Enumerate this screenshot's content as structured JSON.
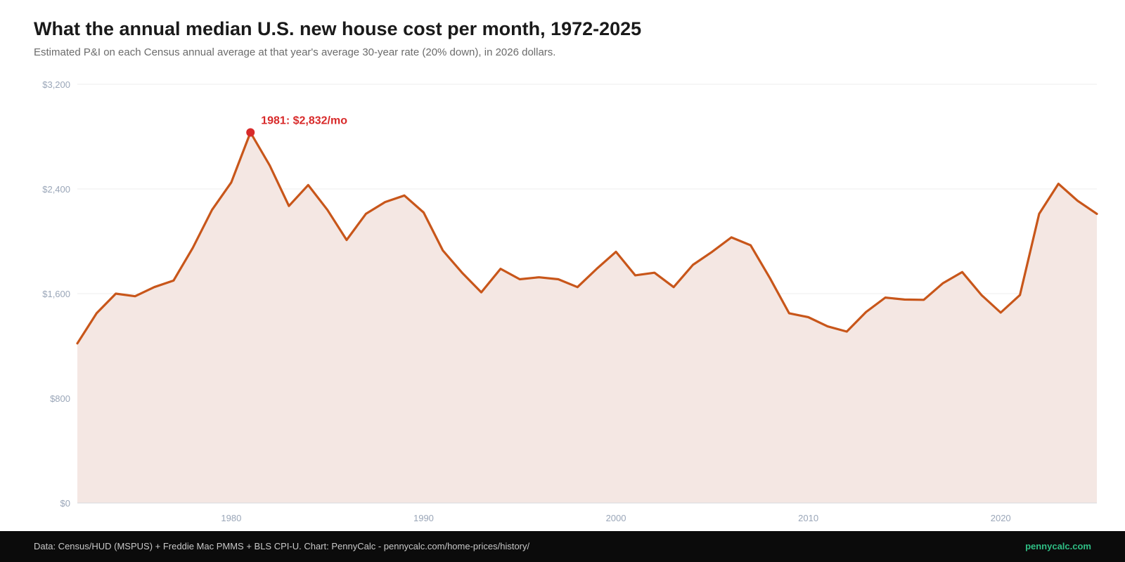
{
  "header": {
    "title": "What the annual median U.S. new house cost per month, 1972-2025",
    "subtitle": "Estimated P&I on each Census annual average at that year's average 30-year rate (20% down), in 2026 dollars."
  },
  "footer": {
    "source": "Data: Census/HUD (MSPUS) + Freddie Mac PMMS + BLS CPI-U. Chart: PennyCalc - pennycalc.com/home-prices/history/",
    "brand": "pennycalc.com"
  },
  "colors": {
    "line": "#c8561a",
    "area": "#f4e7e3",
    "peak": "#d82a2a",
    "grid": "#eeeeee",
    "brand": "#2fbf85"
  },
  "chart_data": {
    "type": "area",
    "title": "What the annual median U.S. new house cost per month, 1972-2025",
    "xlabel": "",
    "ylabel": "",
    "xlim": [
      1972,
      2025
    ],
    "ylim": [
      0,
      3200
    ],
    "x_ticks": [
      1980,
      1990,
      2000,
      2010,
      2020
    ],
    "y_ticks": [
      0,
      800,
      1600,
      2400,
      3200
    ],
    "y_tick_labels": [
      "$0",
      "$800",
      "$1,600",
      "$2,400",
      "$3,200"
    ],
    "grid": true,
    "legend": "none",
    "series": [
      {
        "x": [
          1972,
          1973,
          1974,
          1975,
          1976,
          1977,
          1978,
          1979,
          1980,
          1981,
          1982,
          1983,
          1984,
          1985,
          1986,
          1987,
          1988,
          1989,
          1990,
          1991,
          1992,
          1993,
          1994,
          1995,
          1996,
          1997,
          1998,
          1999,
          2000,
          2001,
          2002,
          2003,
          2004,
          2005,
          2006,
          2007,
          2008,
          2009,
          2010,
          2011,
          2012,
          2013,
          2014,
          2015,
          2016,
          2017,
          2018,
          2019,
          2020,
          2021,
          2022,
          2023,
          2024,
          2025
        ],
        "values": [
          1220,
          1450,
          1600,
          1580,
          1650,
          1700,
          1950,
          2240,
          2450,
          2832,
          2580,
          2270,
          2430,
          2240,
          2010,
          2210,
          2300,
          2350,
          2220,
          1930,
          1760,
          1610,
          1790,
          1710,
          1725,
          1710,
          1650,
          1790,
          1920,
          1740,
          1760,
          1650,
          1820,
          1920,
          2030,
          1970,
          1720,
          1450,
          1420,
          1350,
          1310,
          1460,
          1570,
          1555,
          1553,
          1680,
          1765,
          1590,
          1455,
          1590,
          2210,
          2440,
          2310,
          2210
        ]
      }
    ],
    "annotations": [
      {
        "x": 1981,
        "y": 2832,
        "text": "1981: $2,832/mo"
      }
    ]
  }
}
